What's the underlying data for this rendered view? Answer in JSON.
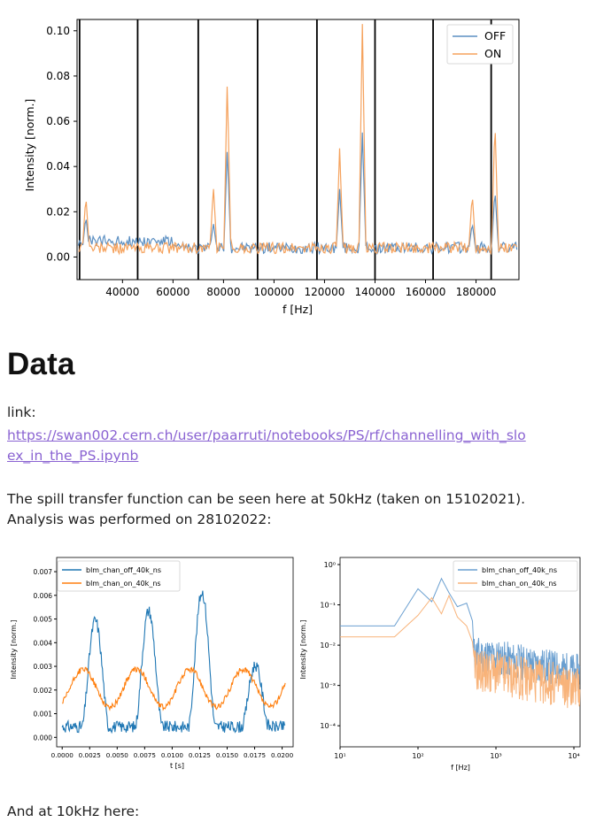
{
  "heading": "Data",
  "link_label": "link:",
  "link_url": "https://swan002.cern.ch/user/paarruti/notebooks/PS/rf/channelling_with_slo\nex_in_the_PS.ipynb",
  "link_line1": "https://swan002.cern.ch/user/paarruti/notebooks/PS/rf/channelling_with_slo",
  "link_line2": "ex_in_the_PS.ipynb",
  "para1_line1": "The spill transfer function can be seen here at 50kHz (taken on 15102021).",
  "para1_line2": "Analysis was performed on 28102022:",
  "para2": "And at 10kHz here:",
  "chart_data": [
    {
      "type": "line",
      "xlabel": "f [Hz]",
      "ylabel": "Intensity [norm.]",
      "xlim": [
        22000,
        197000
      ],
      "ylim": [
        -0.01,
        0.105
      ],
      "xticks": [
        "40000",
        "60000",
        "80000",
        "100000",
        "120000",
        "140000",
        "160000",
        "180000"
      ],
      "yticks": [
        "0.00",
        "0.02",
        "0.04",
        "0.06",
        "0.08",
        "0.10"
      ],
      "vlines": [
        23000,
        46000,
        70000,
        93500,
        117000,
        140000,
        163000,
        186000
      ],
      "legend_position": "top-right",
      "series": [
        {
          "name": "OFF",
          "color": "#5b8fc2",
          "peaks": [
            [
              25500,
              0.015
            ],
            [
              76000,
              0.012
            ],
            [
              81500,
              0.045
            ],
            [
              126000,
              0.027
            ],
            [
              135000,
              0.052
            ],
            [
              178500,
              0.012
            ],
            [
              187500,
              0.027
            ]
          ]
        },
        {
          "name": "ON",
          "color": "#f5a25d",
          "peaks": [
            [
              25500,
              0.024
            ],
            [
              76000,
              0.028
            ],
            [
              81500,
              0.075
            ],
            [
              126000,
              0.045
            ],
            [
              135000,
              0.1
            ],
            [
              178500,
              0.025
            ],
            [
              187500,
              0.058
            ]
          ]
        }
      ]
    },
    {
      "type": "line",
      "xlabel": "t [s]",
      "ylabel": "Intensity [norm.]",
      "xlim": [
        -0.0005,
        0.021
      ],
      "ylim": [
        -0.0004,
        0.0076
      ],
      "xticks": [
        "0.0000",
        "0.0025",
        "0.0050",
        "0.0075",
        "0.0100",
        "0.0125",
        "0.0150",
        "0.0175",
        "0.0200"
      ],
      "yticks": [
        "0.000",
        "0.001",
        "0.002",
        "0.003",
        "0.004",
        "0.005",
        "0.006",
        "0.007"
      ],
      "legend_position": "top-left",
      "series": [
        {
          "name": "blm_chan_off_40k_ns",
          "color": "#1f77b4"
        },
        {
          "name": "blm_chan_on_40k_ns",
          "color": "#ff7f0e"
        }
      ]
    },
    {
      "type": "line",
      "xlabel": "f [Hz]",
      "ylabel": "Intensity [norm.]",
      "xscale": "log",
      "yscale": "log",
      "xlim": [
        10,
        12000
      ],
      "ylim": [
        3e-05,
        1.5
      ],
      "xticks": [
        "10¹",
        "10²",
        "10³",
        "10⁴"
      ],
      "yticks": [
        "10⁰",
        "10⁻¹",
        "10⁻²",
        "10⁻³",
        "10⁻⁴"
      ],
      "legend_position": "top-right",
      "series": [
        {
          "name": "blm_chan_off_40k_ns",
          "color": "#6a9fd0"
        },
        {
          "name": "blm_chan_on_40k_ns",
          "color": "#f8b37a"
        }
      ]
    }
  ]
}
